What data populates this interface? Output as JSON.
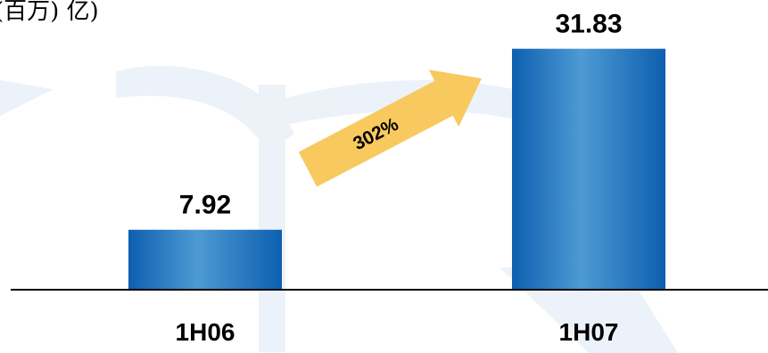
{
  "header": {
    "unit_label": "(百万) 亿)"
  },
  "growth": {
    "label": "302%"
  },
  "colors": {
    "bar_dark": "#0d5fb0",
    "bar_light": "#4e9ad3",
    "arrow": "#f8c95e",
    "watermark": "#eaf1f8"
  },
  "chart_data": {
    "type": "bar",
    "categories": [
      "1H06",
      "1H07"
    ],
    "values": [
      7.92,
      31.83
    ],
    "value_labels": [
      "7.92",
      "31.83"
    ],
    "title": "",
    "xlabel": "",
    "ylabel": "",
    "ylim": [
      0,
      32.5
    ],
    "grid": false,
    "legend": "none"
  }
}
